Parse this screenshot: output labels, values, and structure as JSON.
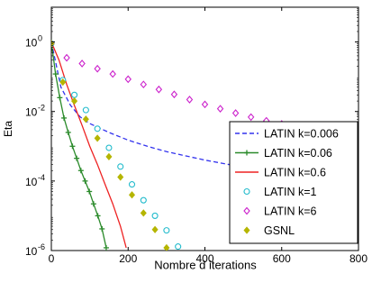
{
  "chart_data": {
    "type": "line",
    "xlabel": "Nombre d iterations",
    "ylabel": "Eta",
    "xlim": [
      0,
      800
    ],
    "ylim": [
      1e-06,
      10
    ],
    "yscale": "log",
    "xticks": [
      0,
      200,
      400,
      600,
      800
    ],
    "yticks": [
      {
        "value": 1,
        "label": "10",
        "exp": "0"
      },
      {
        "value": 0.01,
        "label": "10",
        "exp": "-2"
      },
      {
        "value": 0.0001,
        "label": "10",
        "exp": "-4"
      },
      {
        "value": 1e-06,
        "label": "10",
        "exp": "-6"
      }
    ],
    "legend_position": "lower-right",
    "series": [
      {
        "name": "LATIN k=0.006",
        "color": "#3333ee",
        "style": "dashed",
        "marker": "none",
        "x": [
          0,
          25,
          50,
          75,
          100,
          150,
          200,
          250,
          300,
          400,
          500,
          600,
          700,
          760
        ],
        "y": [
          1,
          0.05,
          0.015,
          0.007,
          0.0045,
          0.0025,
          0.0015,
          0.001,
          0.0007,
          0.0004,
          0.00025,
          0.00016,
          0.0001,
          8e-05
        ]
      },
      {
        "name": "LATIN k=0.06",
        "color": "#2a8a2a",
        "style": "solid",
        "marker": "plus",
        "x": [
          0,
          11,
          22,
          33,
          44,
          55,
          66,
          77,
          88,
          99,
          110,
          121,
          132,
          143
        ],
        "y": [
          1,
          0.12,
          0.025,
          0.0065,
          0.0025,
          0.001,
          0.00045,
          0.0002,
          0.0001,
          5e-05,
          2.2e-05,
          1e-05,
          4.2e-06,
          1.2e-06
        ]
      },
      {
        "name": "LATIN k=0.6",
        "color": "#ee2222",
        "style": "solid",
        "marker": "none",
        "x": [
          0,
          20,
          40,
          60,
          80,
          100,
          120,
          140,
          160,
          180,
          195
        ],
        "y": [
          1,
          0.3,
          0.06,
          0.015,
          0.004,
          0.001,
          0.0003,
          8e-05,
          2.2e-05,
          5e-06,
          1.2e-06
        ]
      },
      {
        "name": "LATIN k=1",
        "color": "#22bbcc",
        "style": "none",
        "marker": "circle",
        "x": [
          0,
          30,
          60,
          90,
          120,
          150,
          180,
          210,
          240,
          270,
          300,
          330
        ],
        "y": [
          0.9,
          0.08,
          0.03,
          0.011,
          0.0032,
          0.0009,
          0.00026,
          8e-05,
          2.8e-05,
          1e-05,
          3.8e-06,
          1.3e-06
        ]
      },
      {
        "name": "LATIN k=6",
        "color": "#cc22cc",
        "style": "none",
        "marker": "diamond",
        "x": [
          0,
          40,
          80,
          120,
          160,
          200,
          240,
          280,
          320,
          360,
          400,
          440,
          480,
          520,
          560,
          600,
          640
        ],
        "y": [
          0.9,
          0.35,
          0.24,
          0.17,
          0.12,
          0.085,
          0.06,
          0.043,
          0.031,
          0.022,
          0.016,
          0.012,
          0.009,
          0.0069,
          0.0054,
          0.0044,
          0.0035
        ]
      },
      {
        "name": "GSNL",
        "color": "#b5b500",
        "style": "none",
        "marker": "diamond-filled",
        "x": [
          0,
          30,
          60,
          90,
          120,
          150,
          180,
          210,
          240,
          270,
          300
        ],
        "y": [
          0.9,
          0.07,
          0.02,
          0.006,
          0.0017,
          0.0005,
          0.00013,
          4e-05,
          1.2e-05,
          4e-06,
          1.2e-06
        ]
      }
    ]
  }
}
